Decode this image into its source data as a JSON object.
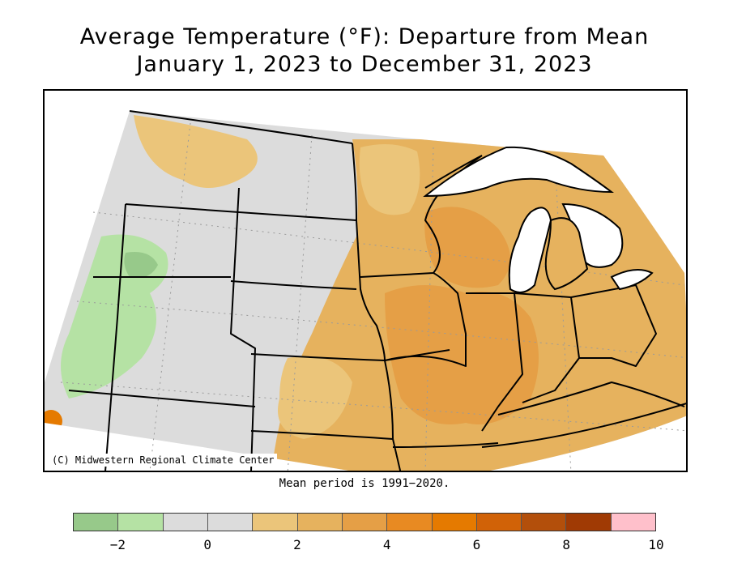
{
  "title": {
    "line1": "Average Temperature (°F): Departure from Mean",
    "line2": "January 1, 2023 to December 31, 2023"
  },
  "credit": "(C) Midwestern Regional Climate Center",
  "mean_period": "Mean period is 1991−2020.",
  "legend": {
    "colors": [
      "#97c98a",
      "#b5e2a4",
      "#dcdcdc",
      "#dcdcdc",
      "#ebc57a",
      "#e6b25e",
      "#e59f46",
      "#e88a22",
      "#e57a00",
      "#d16207",
      "#b34f0b",
      "#a03a04",
      "#ffc0cb"
    ],
    "ticks": [
      "−2",
      "0",
      "2",
      "4",
      "6",
      "8",
      "10"
    ],
    "tick_values": [
      -2,
      0,
      2,
      4,
      6,
      8,
      10
    ],
    "range": [
      -3,
      10
    ]
  },
  "palette": {
    "gray": "#dcdcdc",
    "light_orange": "#ebc57a",
    "orange": "#e6b25e",
    "dark_orange": "#e59f46",
    "green": "#b5e2a4",
    "dark_green": "#97c98a",
    "deep_orange": "#e57a00"
  }
}
